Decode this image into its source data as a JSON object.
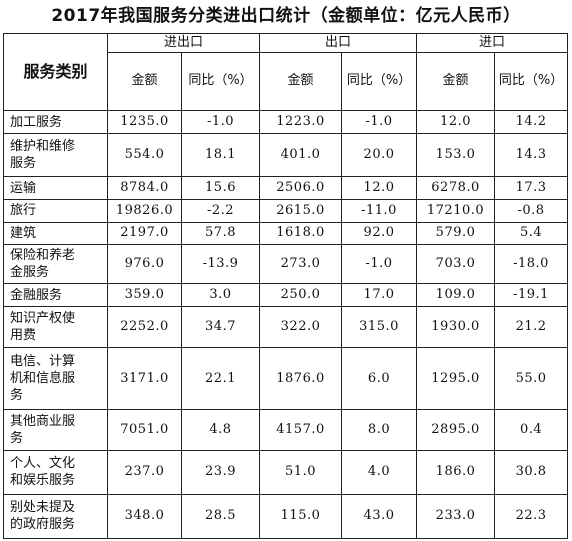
{
  "title": "2017年我国服务分类进出口统计（金额单位：亿元人民币）",
  "header": {
    "category": "服务类别",
    "groups": [
      "进出口",
      "出口",
      "进口"
    ],
    "amount": "金额",
    "yoy": "同比（%）"
  },
  "rows": [
    {
      "cat": [
        "加工服务"
      ],
      "v": [
        "1235.0",
        "-1.0",
        "1223.0",
        "-1.0",
        "12.0",
        "14.2"
      ]
    },
    {
      "cat": [
        "维护和维修",
        "服务"
      ],
      "v": [
        "554.0",
        "18.1",
        "401.0",
        "20.0",
        "153.0",
        "14.3"
      ]
    },
    {
      "cat": [
        "运输"
      ],
      "v": [
        "8784.0",
        "15.6",
        "2506.0",
        "12.0",
        "6278.0",
        "17.3"
      ]
    },
    {
      "cat": [
        "旅行"
      ],
      "v": [
        "19826.0",
        "-2.2",
        "2615.0",
        "-11.0",
        "17210.0",
        "-0.8"
      ]
    },
    {
      "cat": [
        "建筑"
      ],
      "v": [
        "2197.0",
        "57.8",
        "1618.0",
        "92.0",
        "579.0",
        "5.4"
      ]
    },
    {
      "cat": [
        "保险和养老",
        "金服务"
      ],
      "v": [
        "976.0",
        "-13.9",
        "273.0",
        "-1.0",
        "703.0",
        "-18.0"
      ]
    },
    {
      "cat": [
        "金融服务"
      ],
      "v": [
        "359.0",
        "3.0",
        "250.0",
        "17.0",
        "109.0",
        "-19.1"
      ]
    },
    {
      "cat": [
        "知识产权使",
        "用费"
      ],
      "v": [
        "2252.0",
        "34.7",
        "322.0",
        "315.0",
        "1930.0",
        "21.2"
      ]
    },
    {
      "cat": [
        "电信、计算",
        "机和信息服",
        "务"
      ],
      "v": [
        "3171.0",
        "22.1",
        "1876.0",
        "6.0",
        "1295.0",
        "55.0"
      ]
    },
    {
      "cat": [
        "其他商业服",
        "务"
      ],
      "v": [
        "7051.0",
        "4.8",
        "4157.0",
        "8.0",
        "2895.0",
        "0.4"
      ]
    },
    {
      "cat": [
        "个人、文化",
        "和娱乐服务"
      ],
      "v": [
        "237.0",
        "23.9",
        "51.0",
        "4.0",
        "186.0",
        "30.8"
      ]
    },
    {
      "cat": [
        "别处未提及",
        "的政府服务"
      ],
      "v": [
        "348.0",
        "28.5",
        "115.0",
        "43.0",
        "233.0",
        "22.3"
      ]
    }
  ]
}
